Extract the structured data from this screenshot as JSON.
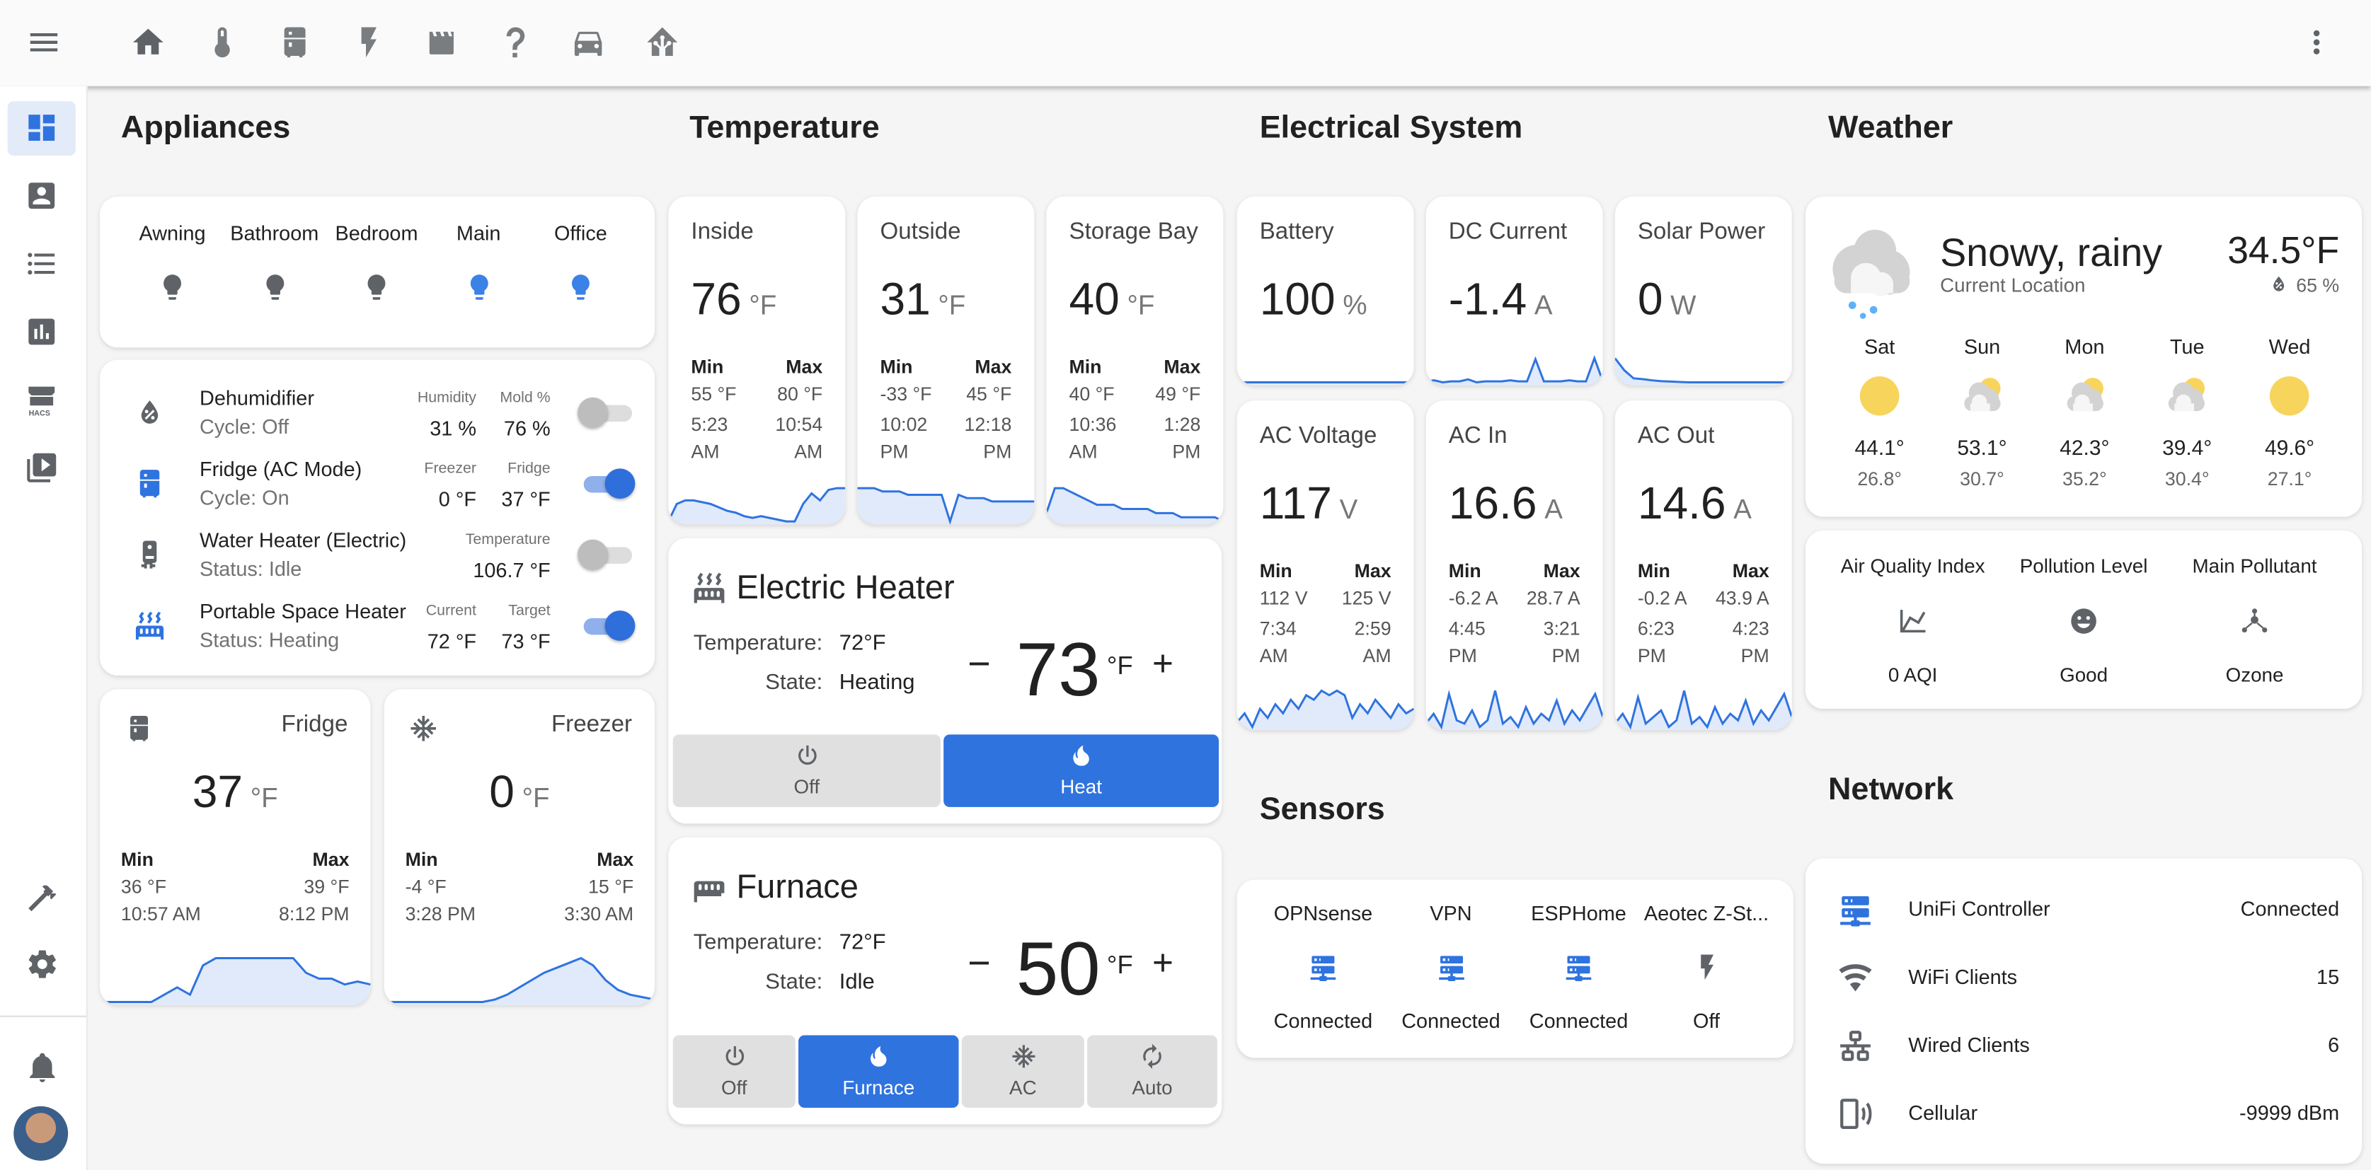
{
  "colors": {
    "accent": "#2f73df",
    "bulb_on": "#3b82e8",
    "bulb_off": "#5f6368",
    "sun": "#f7d55c"
  },
  "topbar": {
    "icons": [
      "home-icon",
      "thermometer-icon",
      "fridge-icon",
      "flash-icon",
      "clapperboard-icon",
      "help-icon",
      "car-icon",
      "home-assistant-icon"
    ],
    "menu_icon": "menu-icon",
    "overflow_icon": "dots-vertical-icon"
  },
  "sidebar": {
    "items": [
      "dashboard-icon",
      "account-box-icon",
      "format-list-icon",
      "chart-box-icon",
      "hacs-store-icon",
      "play-box-icon"
    ],
    "selected": 0,
    "bottom": [
      "hammer-icon",
      "cog-icon",
      "bell-icon"
    ],
    "hacs_label": "HACS"
  },
  "sections": {
    "appliances": "Appliances",
    "temperature": "Temperature",
    "electrical": "Electrical System",
    "weather": "Weather",
    "sensors": "Sensors",
    "network": "Network"
  },
  "lights": [
    {
      "name": "Awning",
      "on": false
    },
    {
      "name": "Bathroom",
      "on": false
    },
    {
      "name": "Bedroom",
      "on": false
    },
    {
      "name": "Main",
      "on": true
    },
    {
      "name": "Office",
      "on": true
    }
  ],
  "appliances": [
    {
      "name": "Dehumidifier",
      "status": "Cycle: Off",
      "icon": "water-percent-icon",
      "active": false,
      "attrs": [
        {
          "label": "Humidity",
          "value": "31 %"
        },
        {
          "label": "Mold %",
          "value": "76 %"
        }
      ],
      "on": false
    },
    {
      "name": "Fridge (AC Mode)",
      "status": "Cycle: On",
      "icon": "fridge-icon",
      "active": true,
      "attrs": [
        {
          "label": "Freezer",
          "value": "0 °F"
        },
        {
          "label": "Fridge",
          "value": "37 °F"
        }
      ],
      "on": true
    },
    {
      "name": "Water Heater (Electric)",
      "status": "Status: Idle",
      "icon": "water-boiler-icon",
      "active": false,
      "attrs": [
        {
          "label": "Temperature",
          "value": "106.7 °F"
        }
      ],
      "on": false
    },
    {
      "name": "Portable Space Heater",
      "status": "Status: Heating",
      "icon": "radiator-icon",
      "active": true,
      "attrs": [
        {
          "label": "Current",
          "value": "72 °F"
        },
        {
          "label": "Target",
          "value": "73 °F"
        }
      ],
      "on": true
    }
  ],
  "fridge_cards": [
    {
      "name": "Fridge",
      "icon": "fridge-icon",
      "value": "37",
      "unit": "°F",
      "min_label": "Min",
      "max_label": "Max",
      "min": "36 °F",
      "min_time": "10:57 AM",
      "max": "39 °F",
      "max_time": "8:12 PM",
      "history": [
        36,
        36,
        36,
        36,
        36,
        36.5,
        37,
        36.5,
        38.5,
        39,
        39,
        39,
        39,
        39,
        39,
        39,
        38,
        37.6,
        37.6,
        37.2,
        37.4,
        37.2
      ]
    },
    {
      "name": "Freezer",
      "icon": "snowflake-icon",
      "value": "0",
      "unit": "°F",
      "min_label": "Min",
      "max_label": "Max",
      "min": "-4 °F",
      "min_time": "3:28 PM",
      "max": "15 °F",
      "max_time": "3:30 AM",
      "history": [
        -3,
        -3,
        -3,
        -3,
        -3,
        -3,
        -3,
        -3,
        -3,
        -2,
        0,
        3,
        6,
        9,
        11,
        13,
        15,
        12,
        6,
        2,
        0,
        -1,
        -2
      ]
    }
  ],
  "temperature": [
    {
      "name": "Inside",
      "value": "76",
      "unit": "°F",
      "min_label": "Min",
      "max_label": "Max",
      "min": "55 °F",
      "min_time": "5:23 AM",
      "max": "80 °F",
      "max_time": "10:54 AM",
      "history": [
        60,
        70,
        72,
        72,
        71,
        70,
        68,
        66,
        65,
        63,
        62,
        63,
        62,
        61,
        60,
        60,
        70,
        76,
        72,
        78,
        79,
        79
      ]
    },
    {
      "name": "Outside",
      "value": "31",
      "unit": "°F",
      "min_label": "Min",
      "max_label": "Max",
      "min": "-33 °F",
      "min_time": "10:02 PM",
      "max": "45 °F",
      "max_time": "12:18 PM",
      "history": [
        40,
        40,
        40,
        39,
        39,
        39,
        38,
        38,
        38,
        38,
        38,
        30,
        38,
        37,
        37,
        37,
        36,
        36,
        36,
        36,
        36,
        36
      ]
    },
    {
      "name": "Storage Bay",
      "value": "40",
      "unit": "°F",
      "min_label": "Min",
      "max_label": "Max",
      "min": "40 °F",
      "min_time": "10:36 AM",
      "max": "49 °F",
      "max_time": "1:28 PM",
      "history": [
        42,
        48,
        48,
        47,
        46,
        45,
        44,
        44,
        44,
        43,
        43,
        43,
        43,
        42,
        42,
        42,
        41,
        41,
        41,
        41,
        41,
        40
      ]
    }
  ],
  "thermostats": [
    {
      "name": "Electric Heater",
      "icon": "radiator-icon",
      "temp_label": "Temperature:",
      "temp": "72°F",
      "state_label": "State:",
      "state": "Heating",
      "setpoint": "73",
      "unit": "°F",
      "minus": "−",
      "plus": "+",
      "modes": [
        {
          "label": "Off",
          "icon": "power-icon",
          "active": false
        },
        {
          "label": "Heat",
          "icon": "fire-icon",
          "active": true
        }
      ]
    },
    {
      "name": "Furnace",
      "icon": "radiator-disabled-icon",
      "temp_label": "Temperature:",
      "temp": "72°F",
      "state_label": "State:",
      "state": "Idle",
      "setpoint": "50",
      "unit": "°F",
      "minus": "−",
      "plus": "+",
      "modes": [
        {
          "label": "Off",
          "icon": "power-icon",
          "active": false
        },
        {
          "label": "Furnace",
          "icon": "fire-icon",
          "active": true
        },
        {
          "label": "AC",
          "icon": "snowflake-icon",
          "active": false
        },
        {
          "label": "Auto",
          "icon": "autorenew-icon",
          "active": false
        }
      ]
    }
  ],
  "electrical_top": [
    {
      "name": "Battery",
      "value": "100",
      "unit": "%",
      "history": [
        100,
        100,
        100,
        100,
        100,
        100,
        100,
        100,
        100,
        100,
        100,
        100
      ]
    },
    {
      "name": "DC Current",
      "value": "-1.4",
      "unit": "A",
      "history": [
        -1.4,
        -1.3,
        -1.5,
        -1.4,
        -1.4,
        -1.2,
        -1.5,
        -1.4,
        -1.4,
        -1.4,
        -1.3,
        -1.4,
        -1.4,
        0.8,
        -1.4,
        -1.4,
        -1.4,
        -1.3,
        -1.4,
        -1.4,
        0.9,
        -1.4
      ]
    },
    {
      "name": "Solar Power",
      "value": "0",
      "unit": "W",
      "history": [
        60,
        30,
        10,
        8,
        5,
        3,
        2,
        1,
        0,
        0,
        0,
        0,
        0,
        0,
        0,
        0,
        0,
        0,
        0,
        0
      ]
    }
  ],
  "electrical_ac": [
    {
      "name": "AC Voltage",
      "value": "117",
      "unit": "V",
      "min_label": "Min",
      "max_label": "Max",
      "min": "112 V",
      "min_time": "7:34 AM",
      "max": "125 V",
      "max_time": "2:59 AM",
      "history": [
        114,
        116,
        113,
        117,
        115,
        118,
        116,
        119,
        117,
        120,
        119,
        121,
        120,
        121,
        120,
        115,
        118,
        116,
        119,
        117,
        115,
        118,
        116,
        117
      ]
    },
    {
      "name": "AC In",
      "value": "16.6",
      "unit": "A",
      "min_label": "Min",
      "max_label": "Max",
      "min": "-6.2 A",
      "min_time": "4:45 PM",
      "max": "28.7 A",
      "max_time": "3:21 PM",
      "history": [
        5,
        8,
        4,
        14,
        6,
        5,
        9,
        4,
        6,
        15,
        5,
        7,
        4,
        10,
        5,
        8,
        6,
        12,
        5,
        9,
        6,
        10,
        14,
        7
      ]
    },
    {
      "name": "AC Out",
      "value": "14.6",
      "unit": "A",
      "min_label": "Min",
      "max_label": "Max",
      "min": "-0.2 A",
      "min_time": "6:23 PM",
      "max": "43.9 A",
      "max_time": "4:23 PM",
      "history": [
        6,
        9,
        5,
        14,
        6,
        8,
        10,
        5,
        7,
        16,
        6,
        8,
        5,
        11,
        6,
        9,
        7,
        13,
        6,
        10,
        7,
        11,
        15,
        8
      ]
    }
  ],
  "sensors": [
    {
      "name": "OPNsense",
      "state": "Connected",
      "icon": "server-network-icon",
      "active": true
    },
    {
      "name": "VPN",
      "state": "Connected",
      "icon": "server-network-icon",
      "active": true
    },
    {
      "name": "ESPHome",
      "state": "Connected",
      "icon": "server-network-icon",
      "active": true
    },
    {
      "name": "Aeotec Z-St...",
      "state": "Off",
      "icon": "flash-icon",
      "active": false
    }
  ],
  "weather": {
    "condition": "Snowy, rainy",
    "location": "Current Location",
    "temperature": "34.5°F",
    "humidity": "65 %",
    "forecast": [
      {
        "day": "Sat",
        "icon": "sunny",
        "high": "44.1°",
        "low": "26.8°"
      },
      {
        "day": "Sun",
        "icon": "partly-cloudy",
        "high": "53.1°",
        "low": "30.7°"
      },
      {
        "day": "Mon",
        "icon": "partly-cloudy",
        "high": "42.3°",
        "low": "35.2°"
      },
      {
        "day": "Tue",
        "icon": "partly-cloudy",
        "high": "39.4°",
        "low": "30.4°"
      },
      {
        "day": "Wed",
        "icon": "sunny",
        "high": "49.6°",
        "low": "27.1°"
      }
    ]
  },
  "air_quality": [
    {
      "label": "Air Quality Index",
      "value": "0 AQI",
      "icon": "chart-line-icon"
    },
    {
      "label": "Pollution Level",
      "value": "Good",
      "icon": "emoticon-happy-icon"
    },
    {
      "label": "Main Pollutant",
      "value": "Ozone",
      "icon": "molecule-icon"
    }
  ],
  "network": [
    {
      "name": "UniFi Controller",
      "value": "Connected",
      "icon": "server-network-icon",
      "active": true
    },
    {
      "name": "WiFi Clients",
      "value": "15",
      "icon": "wifi-icon",
      "active": false
    },
    {
      "name": "Wired Clients",
      "value": "6",
      "icon": "lan-icon",
      "active": false
    },
    {
      "name": "Cellular",
      "value": "-9999 dBm",
      "icon": "cellphone-wireless-icon",
      "active": false
    }
  ]
}
